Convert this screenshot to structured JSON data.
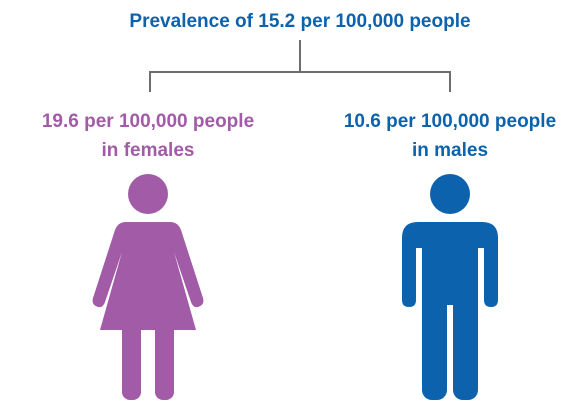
{
  "title": "Prevalence of 15.2 per 100,000 people",
  "groups": [
    {
      "label": [
        "19.6 per 100,000 people",
        "in females"
      ]
    },
    {
      "label": [
        "10.6 per 100,000 people",
        "in males"
      ]
    }
  ]
}
